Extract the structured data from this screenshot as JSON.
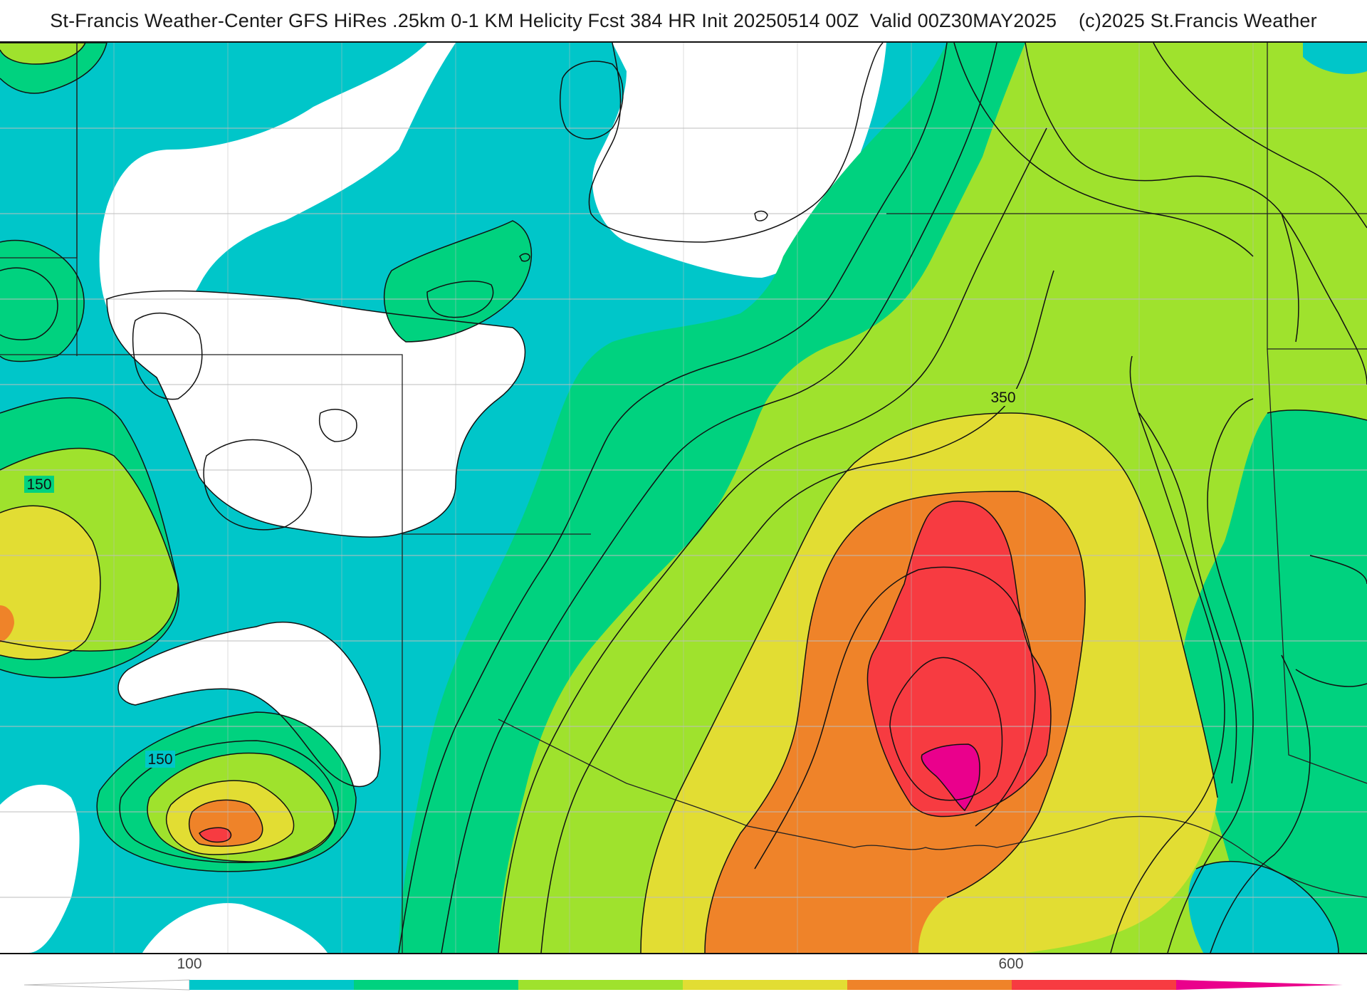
{
  "header": {
    "title": "St-Francis Weather-Center GFS HiRes .25km 0-1 KM Helicity Fcst 384 HR Init 20250514 00Z  Valid 00Z30MAY2025    (c)2025 St.Francis Weather"
  },
  "map": {
    "contour_labels": [
      {
        "id": "label-350",
        "text": "350"
      },
      {
        "id": "label-150-west",
        "text": "150"
      },
      {
        "id": "label-150-south",
        "text": "150"
      }
    ],
    "fill_colors": {
      "band_100": "#00c6c9",
      "band_175": "#00d27f",
      "band_250": "#9fe22d",
      "band_325": "#e2dd33",
      "band_400": "#ef8329",
      "band_500": "#f73b41",
      "band_600": "#ea008c"
    }
  },
  "colorbar": {
    "tick_labels": [
      {
        "id": "tick-100",
        "text": "100"
      },
      {
        "id": "tick-600",
        "text": "600"
      }
    ],
    "segments": [
      "#00c6c9",
      "#00d27f",
      "#9fe22d",
      "#e2dd33",
      "#ef8329",
      "#f73b41",
      "#ea008c"
    ]
  }
}
